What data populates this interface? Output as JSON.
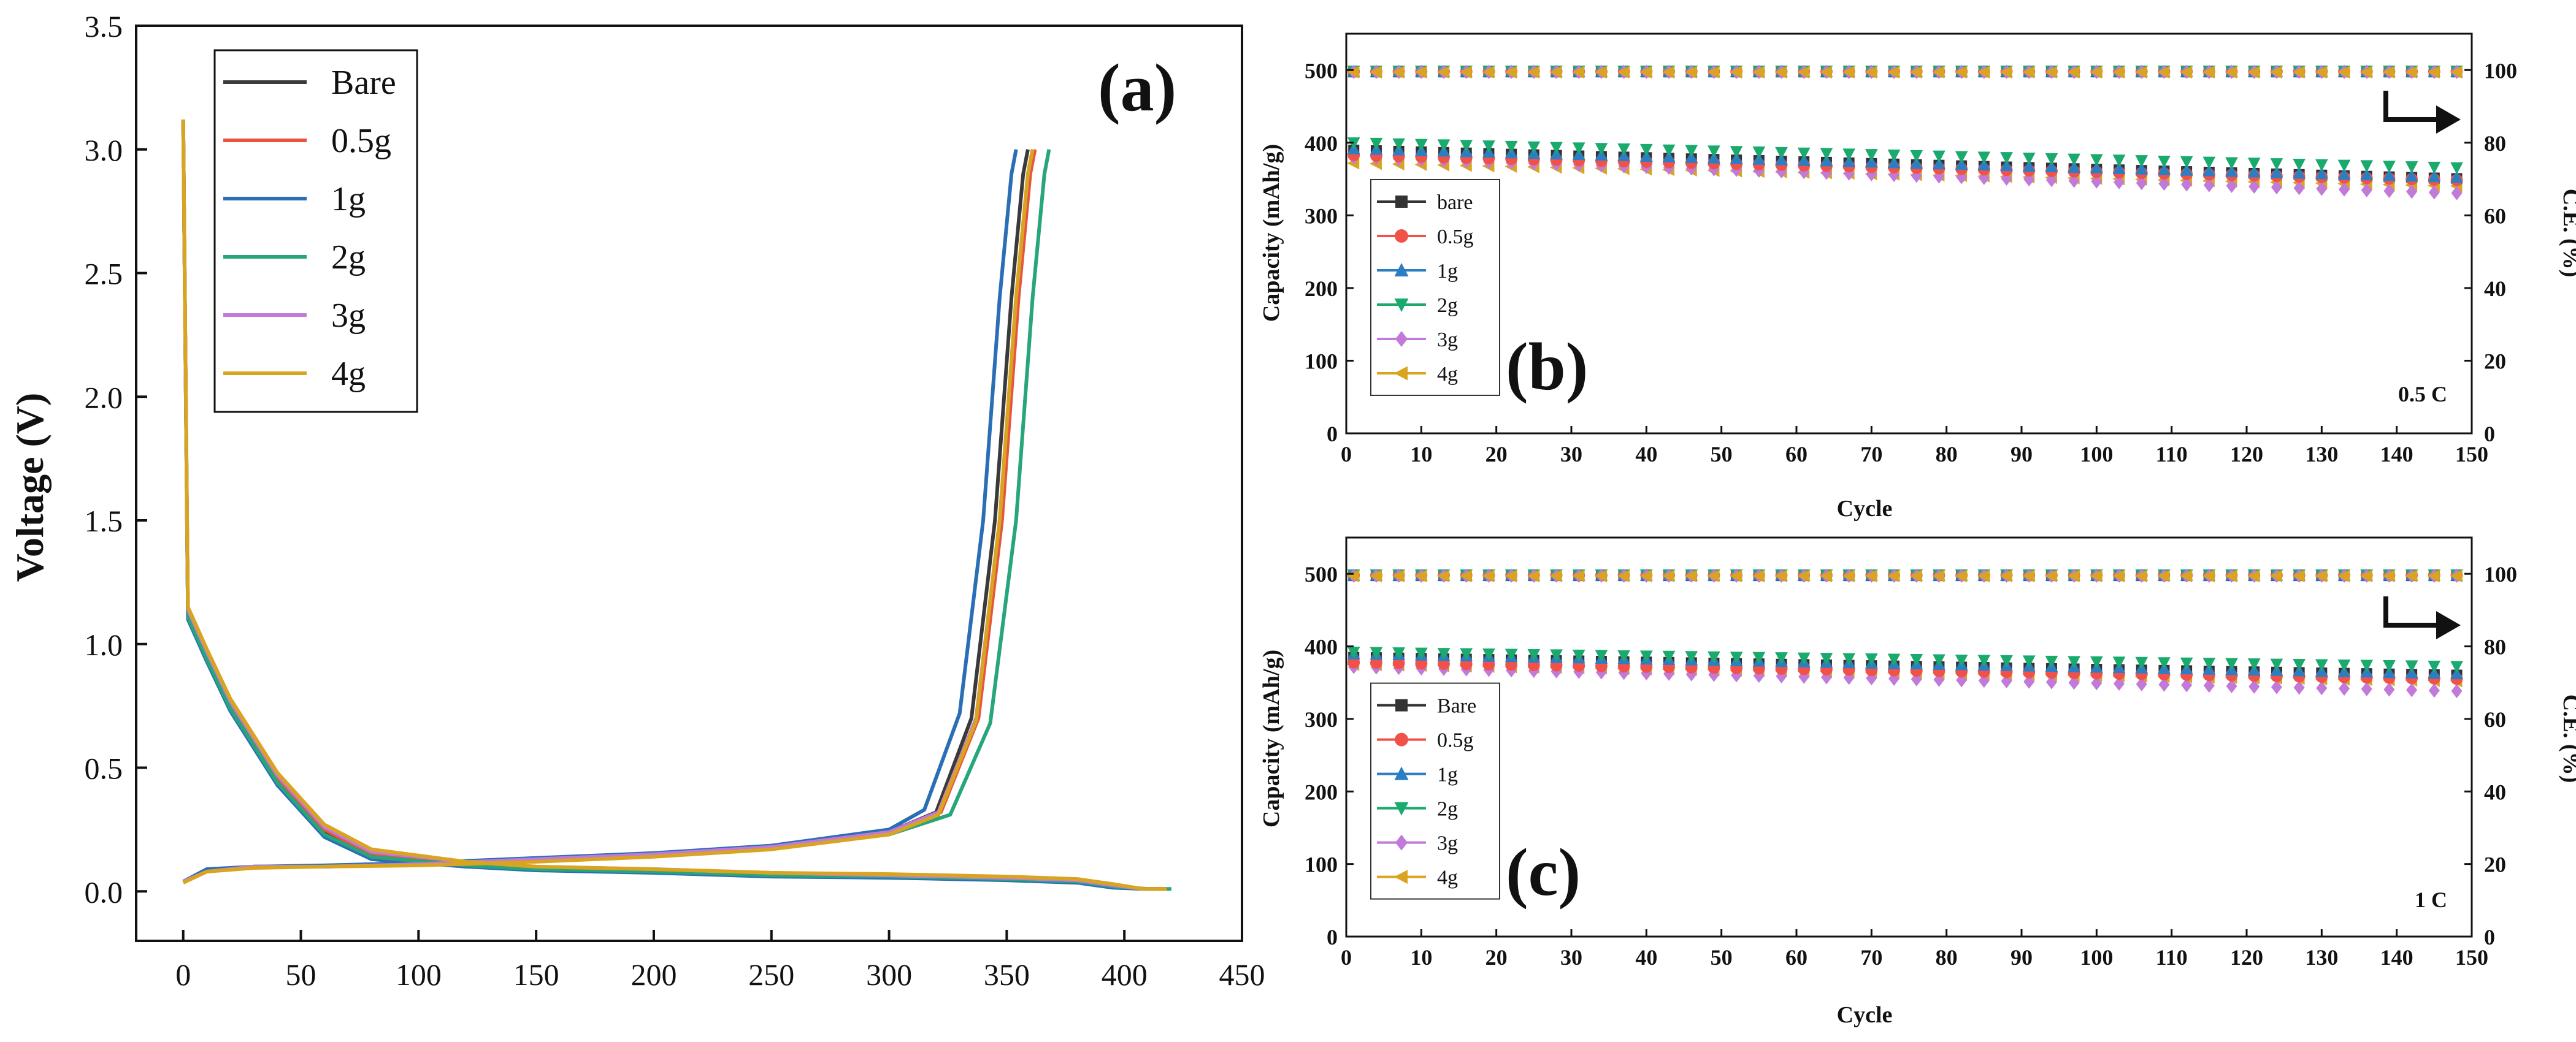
{
  "chart_data": [
    {
      "panel": "(a)",
      "type": "line",
      "xlabel": "",
      "ylabel": "Voltage (V)",
      "xlim": [
        -20,
        450
      ],
      "ylim": [
        -0.2,
        3.5
      ],
      "xticks": [
        "0",
        "50",
        "100",
        "150",
        "200",
        "250",
        "300",
        "350",
        "400",
        "450"
      ],
      "yticks": [
        "0.0",
        "0.5",
        "1.0",
        "1.5",
        "2.0",
        "2.5",
        "3.0",
        "3.5"
      ],
      "legend_position": "top-left",
      "series": [
        {
          "name": "Bare",
          "color": "#3a3a3a",
          "discharge": {
            "x": [
              0,
              2,
              10,
              20,
              40,
              60,
              80,
              120,
              150,
              200,
              250,
              300,
              350,
              380,
              395,
              408,
              418
            ],
            "y": [
              3.12,
              1.12,
              0.95,
              0.75,
              0.45,
              0.24,
              0.14,
              0.11,
              0.09,
              0.08,
              0.065,
              0.06,
              0.05,
              0.04,
              0.02,
              0.01,
              0.01
            ]
          },
          "charge": {
            "x": [
              0,
              10,
              30,
              60,
              100,
              150,
              200,
              250,
              300,
              320,
              335,
              345,
              352,
              357,
              359
            ],
            "y": [
              0.04,
              0.08,
              0.1,
              0.1,
              0.11,
              0.13,
              0.15,
              0.18,
              0.24,
              0.32,
              0.7,
              1.5,
              2.4,
              2.9,
              3.0
            ]
          }
        },
        {
          "name": "0.5g",
          "color": "#e8553d",
          "discharge": {
            "x": [
              0,
              2,
              10,
              20,
              40,
              60,
              80,
              120,
              150,
              200,
              250,
              300,
              350,
              380,
              395,
              408,
              418
            ],
            "y": [
              3.12,
              1.13,
              0.96,
              0.76,
              0.46,
              0.25,
              0.15,
              0.115,
              0.095,
              0.085,
              0.07,
              0.06,
              0.05,
              0.04,
              0.02,
              0.01,
              0.01
            ]
          },
          "charge": {
            "x": [
              0,
              10,
              30,
              60,
              100,
              150,
              200,
              250,
              300,
              322,
              338,
              348,
              355,
              360,
              362
            ],
            "y": [
              0.04,
              0.08,
              0.1,
              0.1,
              0.11,
              0.13,
              0.15,
              0.18,
              0.24,
              0.32,
              0.7,
              1.5,
              2.4,
              2.9,
              3.0
            ]
          }
        },
        {
          "name": "1g",
          "color": "#2a6fb5",
          "discharge": {
            "x": [
              0,
              2,
              10,
              20,
              40,
              60,
              80,
              120,
              150,
              200,
              250,
              300,
              350,
              380,
              395,
              408,
              418
            ],
            "y": [
              3.12,
              1.1,
              0.93,
              0.73,
              0.43,
              0.22,
              0.13,
              0.1,
              0.085,
              0.075,
              0.06,
              0.055,
              0.045,
              0.035,
              0.015,
              0.01,
              0.01
            ]
          },
          "charge": {
            "x": [
              0,
              10,
              30,
              60,
              100,
              150,
              200,
              250,
              300,
              315,
              330,
              340,
              347,
              352,
              354
            ],
            "y": [
              0.04,
              0.09,
              0.1,
              0.105,
              0.115,
              0.135,
              0.155,
              0.185,
              0.25,
              0.33,
              0.72,
              1.5,
              2.4,
              2.9,
              3.0
            ]
          }
        },
        {
          "name": "2g",
          "color": "#26a67a",
          "discharge": {
            "x": [
              0,
              2,
              10,
              20,
              40,
              60,
              80,
              120,
              150,
              200,
              250,
              300,
              350,
              380,
              395,
              410,
              420
            ],
            "y": [
              3.12,
              1.11,
              0.94,
              0.74,
              0.44,
              0.23,
              0.14,
              0.105,
              0.09,
              0.08,
              0.065,
              0.06,
              0.05,
              0.04,
              0.02,
              0.01,
              0.01
            ]
          },
          "charge": {
            "x": [
              0,
              10,
              30,
              60,
              100,
              150,
              200,
              250,
              300,
              326,
              343,
              354,
              361,
              366,
              368
            ],
            "y": [
              0.04,
              0.08,
              0.1,
              0.1,
              0.11,
              0.13,
              0.15,
              0.18,
              0.23,
              0.31,
              0.68,
              1.5,
              2.4,
              2.9,
              3.0
            ]
          }
        },
        {
          "name": "3g",
          "color": "#c27ad9",
          "discharge": {
            "x": [
              0,
              2,
              10,
              20,
              40,
              60,
              80,
              120,
              150,
              200,
              250,
              300,
              350,
              380,
              395,
              408,
              418
            ],
            "y": [
              3.12,
              1.14,
              0.97,
              0.77,
              0.47,
              0.26,
              0.16,
              0.12,
              0.1,
              0.09,
              0.075,
              0.065,
              0.055,
              0.045,
              0.025,
              0.01,
              0.01
            ]
          },
          "charge": {
            "x": [
              0,
              10,
              30,
              60,
              100,
              150,
              200,
              250,
              300,
              321,
              337,
              347,
              354,
              359,
              361
            ],
            "y": [
              0.04,
              0.08,
              0.1,
              0.1,
              0.11,
              0.13,
              0.15,
              0.18,
              0.24,
              0.32,
              0.7,
              1.5,
              2.4,
              2.9,
              3.0
            ]
          }
        },
        {
          "name": "4g",
          "color": "#d9a520",
          "discharge": {
            "x": [
              0,
              2,
              10,
              20,
              40,
              60,
              80,
              120,
              150,
              200,
              250,
              300,
              350,
              380,
              395,
              408,
              418
            ],
            "y": [
              3.12,
              1.15,
              0.98,
              0.78,
              0.48,
              0.27,
              0.17,
              0.12,
              0.1,
              0.09,
              0.075,
              0.07,
              0.06,
              0.05,
              0.03,
              0.01,
              0.01
            ]
          },
          "charge": {
            "x": [
              0,
              10,
              30,
              60,
              100,
              150,
              200,
              250,
              300,
              321,
              337,
              347,
              354,
              359,
              361
            ],
            "y": [
              0.035,
              0.08,
              0.095,
              0.1,
              0.105,
              0.12,
              0.14,
              0.17,
              0.23,
              0.31,
              0.69,
              1.5,
              2.4,
              2.9,
              3.0
            ]
          }
        }
      ]
    },
    {
      "panel": "(b)",
      "type": "scatter",
      "xlabel": "Cycle",
      "ylabel": "Capacity (mAh/g)",
      "y2label": "C.E. (%)",
      "rate": "0.5 C",
      "xlim": [
        0,
        150
      ],
      "ylim": [
        0,
        550
      ],
      "y2lim": [
        0,
        110
      ],
      "xticks": [
        "0",
        "10",
        "20",
        "30",
        "40",
        "50",
        "60",
        "70",
        "80",
        "90",
        "100",
        "110",
        "120",
        "130",
        "140",
        "150"
      ],
      "yticks": [
        "0",
        "100",
        "200",
        "300",
        "400",
        "500"
      ],
      "y2ticks": [
        "0",
        "20",
        "40",
        "60",
        "80",
        "100"
      ],
      "legend_position": "left",
      "arrow": "right",
      "series": [
        {
          "name": "bare",
          "color": "#333333",
          "marker": "square",
          "capacity_start": 390,
          "capacity_end": 350,
          "ce": 99.5
        },
        {
          "name": "0.5g",
          "color": "#f0524a",
          "marker": "circle",
          "capacity_start": 383,
          "capacity_end": 348,
          "ce": 99.6
        },
        {
          "name": "1g",
          "color": "#2b7ec2",
          "marker": "triangle-up",
          "capacity_start": 392,
          "capacity_end": 352,
          "ce": 99.6
        },
        {
          "name": "2g",
          "color": "#1aaa6e",
          "marker": "triangle-down",
          "capacity_start": 400,
          "capacity_end": 365,
          "ce": 99.7
        },
        {
          "name": "3g",
          "color": "#c27ad9",
          "marker": "diamond",
          "capacity_start": 380,
          "capacity_end": 330,
          "ce": 99.5
        },
        {
          "name": "4g",
          "color": "#d9a520",
          "marker": "triangle-left",
          "capacity_start": 372,
          "capacity_end": 340,
          "ce": 99.4
        }
      ]
    },
    {
      "panel": "(c)",
      "type": "scatter",
      "xlabel": "Cycle",
      "ylabel": "Capacity (mAh/g)",
      "y2label": "C.E. (%)",
      "rate": "1 C",
      "xlim": [
        0,
        150
      ],
      "ylim": [
        0,
        550
      ],
      "y2lim": [
        0,
        110
      ],
      "xticks": [
        "0",
        "10",
        "20",
        "30",
        "40",
        "50",
        "60",
        "70",
        "80",
        "90",
        "100",
        "110",
        "120",
        "130",
        "140",
        "150"
      ],
      "yticks": [
        "0",
        "100",
        "200",
        "300",
        "400",
        "500"
      ],
      "y2ticks": [
        "0",
        "20",
        "40",
        "60",
        "80",
        "100"
      ],
      "legend_position": "left",
      "arrow": "right",
      "series": [
        {
          "name": "Bare",
          "color": "#333333",
          "marker": "square",
          "capacity_start": 385,
          "capacity_end": 360,
          "ce": 99.5
        },
        {
          "name": "0.5g",
          "color": "#f0524a",
          "marker": "circle",
          "capacity_start": 378,
          "capacity_end": 355,
          "ce": 99.6
        },
        {
          "name": "1g",
          "color": "#2b7ec2",
          "marker": "triangle-up",
          "capacity_start": 390,
          "capacity_end": 362,
          "ce": 99.6
        },
        {
          "name": "2g",
          "color": "#1aaa6e",
          "marker": "triangle-down",
          "capacity_start": 392,
          "capacity_end": 372,
          "ce": 99.7
        },
        {
          "name": "3g",
          "color": "#c27ad9",
          "marker": "diamond",
          "capacity_start": 372,
          "capacity_end": 338,
          "ce": 99.5
        },
        {
          "name": "4g",
          "color": "#d9a520",
          "marker": "triangle-left",
          "capacity_start": 375,
          "capacity_end": 352,
          "ce": 99.4
        }
      ]
    }
  ]
}
